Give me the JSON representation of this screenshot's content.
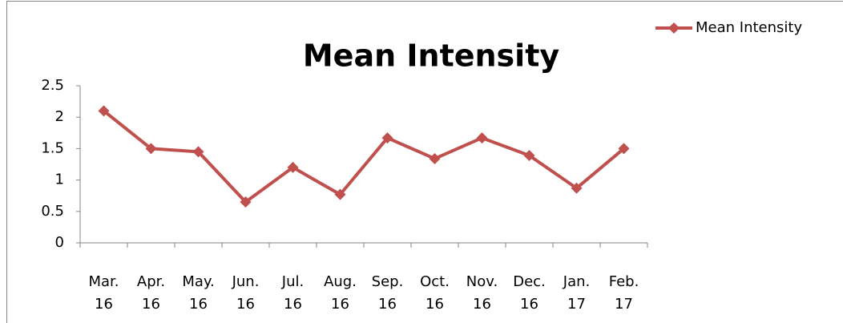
{
  "chart_data": {
    "type": "line",
    "title": "Mean Intensity",
    "categories": [
      "Mar. 16",
      "Apr. 16",
      "May. 16",
      "Jun. 16",
      "Jul. 16",
      "Aug. 16",
      "Sep. 16",
      "Oct. 16",
      "Nov. 16",
      "Dec. 16",
      "Jan. 17",
      "Feb. 17"
    ],
    "series": [
      {
        "name": "Mean Intensity",
        "color": "#c0504d",
        "values": [
          2.1,
          1.5,
          1.45,
          0.65,
          1.2,
          0.77,
          1.67,
          1.34,
          1.67,
          1.39,
          0.87,
          1.5
        ]
      }
    ],
    "ylim": [
      0,
      2.5
    ],
    "yticks": [
      0,
      0.5,
      1,
      1.5,
      2,
      2.5
    ],
    "grid": false,
    "legend": "top-right"
  }
}
